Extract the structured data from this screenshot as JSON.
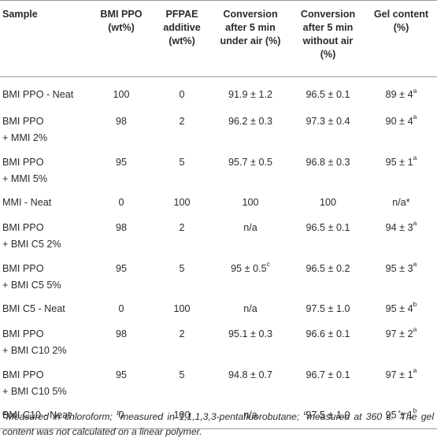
{
  "table": {
    "headers": [
      [
        "Sample"
      ],
      [
        "BMI PPO",
        "(wt%)"
      ],
      [
        "PFPAE",
        "additive",
        "(wt%)"
      ],
      [
        "Conversion",
        "after 5 min",
        "under air (%)"
      ],
      [
        "Conversion",
        "after 5 min",
        "without air",
        "(%)"
      ],
      [
        "Gel content",
        "(%)"
      ]
    ],
    "rows": [
      {
        "sample": [
          "BMI PPO - Neat"
        ],
        "ppo": "100",
        "pfpae": "0",
        "conv_air": "91.9 ± 1.2",
        "conv_air_sup": "",
        "conv_noair": "96.5 ± 0.1",
        "gel": "89 ± 4",
        "gel_sup": "a"
      },
      {
        "sample": [
          "BMI PPO",
          "+ MMI 2%"
        ],
        "ppo": "98",
        "pfpae": "2",
        "conv_air": "96.2 ± 0.3",
        "conv_air_sup": "",
        "conv_noair": "97.3 ± 0.4",
        "gel": "90 ± 4",
        "gel_sup": "a"
      },
      {
        "sample": [
          "BMI PPO",
          "+ MMI 5%"
        ],
        "ppo": "95",
        "pfpae": "5",
        "conv_air": "95.7 ± 0.5",
        "conv_air_sup": "",
        "conv_noair": "96.8 ± 0.3",
        "gel": "95 ± 1",
        "gel_sup": "a"
      },
      {
        "sample": [
          "MMI - Neat"
        ],
        "ppo": "0",
        "pfpae": "100",
        "conv_air": "100",
        "conv_air_sup": "",
        "conv_noair": "100",
        "gel": "n/a*",
        "gel_sup": ""
      },
      {
        "sample": [
          "BMI PPO",
          "+ BMI C5 2%"
        ],
        "ppo": "98",
        "pfpae": "2",
        "conv_air": "n/a",
        "conv_air_sup": "",
        "conv_noair": "96.5 ± 0.1",
        "gel": "94 ± 3",
        "gel_sup": "a"
      },
      {
        "sample": [
          "BMI PPO",
          "+ BMI C5 5%"
        ],
        "ppo": "95",
        "pfpae": "5",
        "conv_air": "95 ± 0.5",
        "conv_air_sup": "c",
        "conv_noair": "96.5 ± 0.2",
        "gel": "95 ± 3",
        "gel_sup": "a"
      },
      {
        "sample": [
          "BMI C5 - Neat"
        ],
        "ppo": "0",
        "pfpae": "100",
        "conv_air": "n/a",
        "conv_air_sup": "",
        "conv_noair": "97.5 ± 1.0",
        "gel": "95 ± 4",
        "gel_sup": "b"
      },
      {
        "sample": [
          "BMI PPO",
          "+ BMI C10 2%"
        ],
        "ppo": "98",
        "pfpae": "2",
        "conv_air": "95.1 ± 0.3",
        "conv_air_sup": "",
        "conv_noair": "96.6 ± 0.1",
        "gel": "97 ± 2",
        "gel_sup": "a"
      },
      {
        "sample": [
          "BMI PPO",
          "+ BMI C10 5%"
        ],
        "ppo": "95",
        "pfpae": "5",
        "conv_air": "94.8 ± 0.7",
        "conv_air_sup": "",
        "conv_noair": "96.7 ± 0.1",
        "gel": "97 ± 1",
        "gel_sup": "a"
      },
      {
        "sample": [
          "BMI C10 - Neat"
        ],
        "ppo": "0",
        "pfpae": "100",
        "conv_air": "n/a",
        "conv_air_sup": "",
        "conv_noair": "97.5 ± 1.0",
        "gel": "95 ± 1",
        "gel_sup": "b"
      }
    ]
  },
  "footnote": {
    "a_mark": "a",
    "a_text": "Measured in chloroform; ",
    "b_mark": "b",
    "b_text": "measured in 1,1,1,3,3-pentafluorobutane; ",
    "c_mark": "c",
    "c_text": "measured at 360 s. ",
    "star_mark": "*",
    "star_text": "The gel content was not calculated on a linear polymer."
  }
}
